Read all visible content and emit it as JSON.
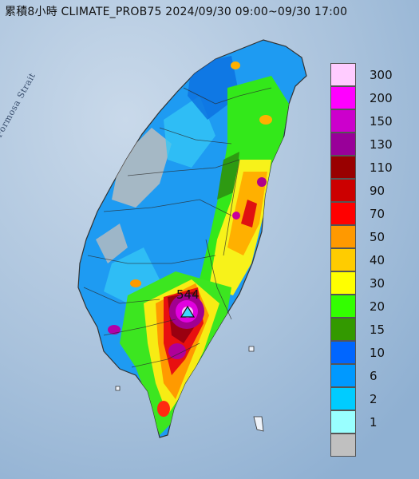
{
  "title": "累積8小時 CLIMATE_PROB75 2024/09/30 09:00~09/30 17:00",
  "strait_label": "Formosa Strait",
  "peak_value": "544",
  "legend": [
    {
      "label": "300",
      "color": "#ffccff"
    },
    {
      "label": "200",
      "color": "#ff00ff"
    },
    {
      "label": "150",
      "color": "#cc00cc"
    },
    {
      "label": "130",
      "color": "#990099"
    },
    {
      "label": "110",
      "color": "#990000"
    },
    {
      "label": "90",
      "color": "#cc0000"
    },
    {
      "label": "70",
      "color": "#ff0000"
    },
    {
      "label": "50",
      "color": "#ff9900"
    },
    {
      "label": "40",
      "color": "#ffcc00"
    },
    {
      "label": "30",
      "color": "#ffff00"
    },
    {
      "label": "20",
      "color": "#33ff00"
    },
    {
      "label": "15",
      "color": "#339900"
    },
    {
      "label": "10",
      "color": "#0066ff"
    },
    {
      "label": "6",
      "color": "#0099ff"
    },
    {
      "label": "2",
      "color": "#00ccff"
    },
    {
      "label": "1",
      "color": "#99ffff"
    },
    {
      "label": "",
      "color": "#c0c0c0"
    }
  ]
}
